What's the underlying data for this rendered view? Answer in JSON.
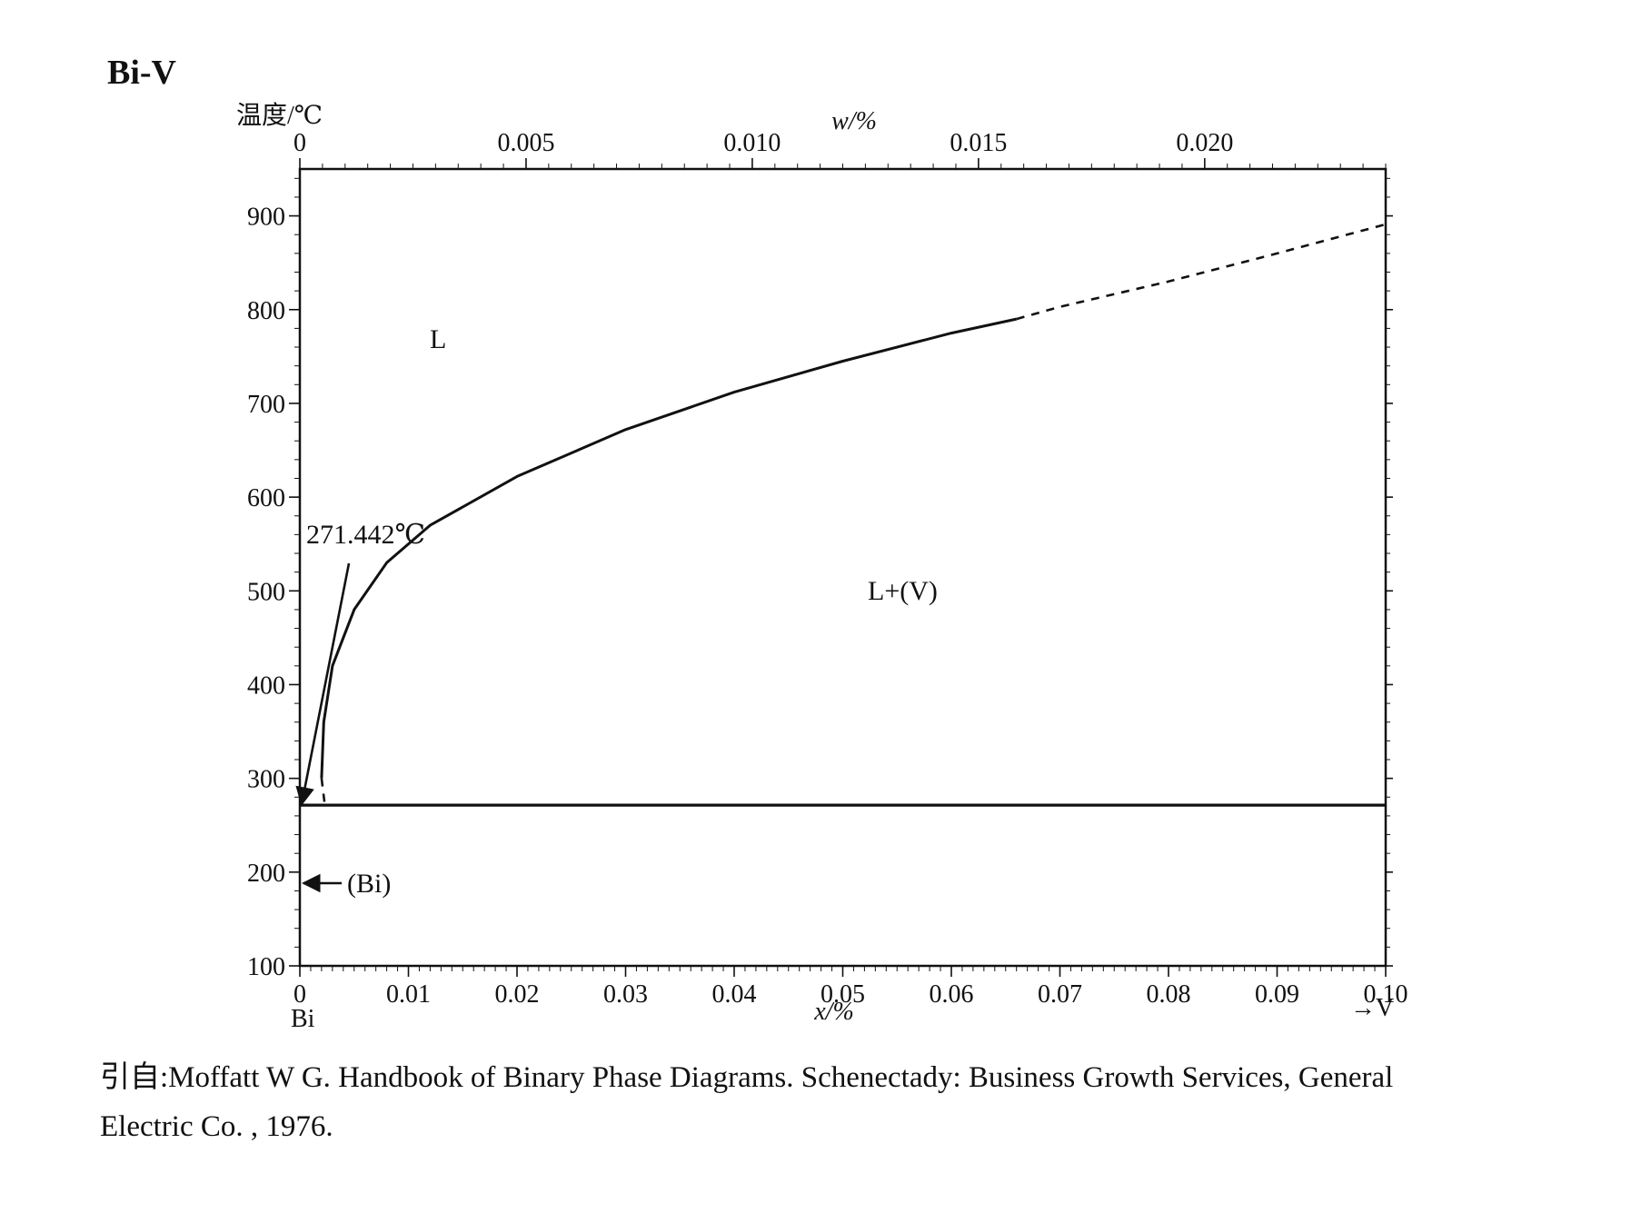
{
  "title": "Bi-V",
  "y_axis_label": "温度/℃",
  "top_axis_label": "w/%",
  "bottom_axis_label": "x/%",
  "left_element": "Bi",
  "right_element": "→V",
  "annotation_temperature": "271.442℃",
  "citation": {
    "line1": "引自:Moffatt W G.  Handbook of Binary Phase Diagrams.  Schenectady: Business Growth Services, General",
    "line2": "Electric Co. , 1976."
  },
  "chart_data": {
    "type": "line",
    "title": "Bi-V",
    "xlabel": "x/%",
    "x2label": "w/%",
    "ylabel": "温度/℃",
    "xlim": [
      0,
      0.1
    ],
    "x2lim": [
      0,
      0.024
    ],
    "ylim": [
      100,
      950
    ],
    "x_ticks": [
      "0",
      "0.01",
      "0.02",
      "0.03",
      "0.04",
      "0.05",
      "0.06",
      "0.07",
      "0.08",
      "0.09",
      "0.10"
    ],
    "x2_ticks": [
      "0",
      "0.005",
      "0.010",
      "0.015",
      "0.020"
    ],
    "y_ticks": [
      "100",
      "200",
      "300",
      "400",
      "500",
      "600",
      "700",
      "800",
      "900"
    ],
    "series": [
      {
        "style": "solid",
        "x": [
          0.002,
          0.0022,
          0.003,
          0.005,
          0.008,
          0.012,
          0.02,
          0.03,
          0.04,
          0.05,
          0.06,
          0.066
        ],
        "y": [
          300,
          360,
          420,
          480,
          530,
          570,
          622,
          672,
          712,
          745,
          775,
          790
        ]
      },
      {
        "style": "dashed",
        "x": [
          0.066,
          0.07,
          0.08,
          0.09,
          0.1
        ],
        "y": [
          790,
          803,
          830,
          860,
          891
        ]
      },
      {
        "style": "dashed",
        "x": [
          0.002,
          0.0023
        ],
        "y": [
          300,
          271.442
        ]
      },
      {
        "style": "solid",
        "x": [
          0,
          0.1
        ],
        "y": [
          271.442,
          271.442
        ]
      }
    ],
    "regions": [
      {
        "label": "L",
        "x": 0.013,
        "y": 770
      },
      {
        "label": "L+(V)",
        "x": 0.055,
        "y": 500
      },
      {
        "label": "(Bi)",
        "x": 0.006,
        "y": 190
      }
    ],
    "annotations": [
      {
        "text": "271.442℃",
        "x": 0.0,
        "y": 271.442
      }
    ]
  }
}
